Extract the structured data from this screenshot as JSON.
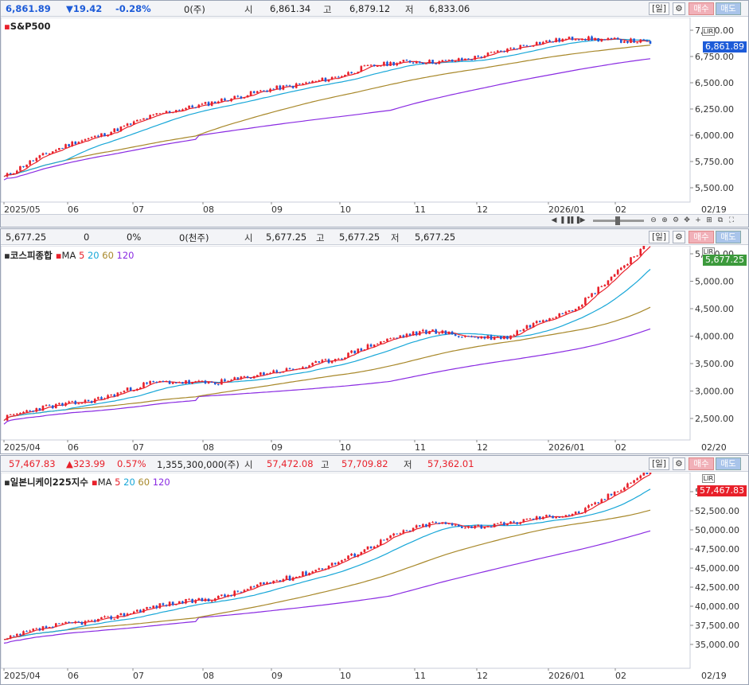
{
  "colors": {
    "up": "#e8202a",
    "down": "#1d5bd8",
    "ma5": "#e8202a",
    "ma20": "#18a7d8",
    "ma60": "#a8882a",
    "ma120": "#8a2be2"
  },
  "panels": [
    {
      "price": "6,861.89",
      "change": "▼19.42",
      "change_pct": "-0.28%",
      "volume": "0(주)",
      "open_label": "시",
      "open": "6,861.34",
      "high_label": "고",
      "high": "6,879.12",
      "low_label": "저",
      "low": "6,833.06",
      "period": "[일]",
      "buy": "매수",
      "sell": "매도",
      "title": "S&P500",
      "ma_label": "",
      "ma_values": [],
      "current_tag": "6,861.89",
      "lir": "LIR",
      "y_ticks": [
        "7,000.00",
        "6,750.00",
        "6,500.00",
        "6,250.00",
        "6,000.00",
        "5,750.00",
        "5,500.00"
      ],
      "x_ticks": [
        "2025/05",
        "06",
        "07",
        "08",
        "09",
        "10",
        "11",
        "12",
        "2026/01",
        "02"
      ],
      "end_date": "02/19",
      "tag_color": "down"
    },
    {
      "price": "5,677.25",
      "change": "0",
      "change_pct": "0%",
      "volume": "0(천주)",
      "open_label": "시",
      "open": "5,677.25",
      "high_label": "고",
      "high": "5,677.25",
      "low_label": "저",
      "low": "5,677.25",
      "period": "[일]",
      "buy": "매수",
      "sell": "매도",
      "title": "코스피종합",
      "ma_label": "MA",
      "ma_values": [
        "5",
        "20",
        "60",
        "120"
      ],
      "current_tag": "5,677.25",
      "lir": "LIR",
      "y_ticks": [
        "5,500.00",
        "5,000.00",
        "4,500.00",
        "4,000.00",
        "3,500.00",
        "3,000.00",
        "2,500.00"
      ],
      "x_ticks": [
        "2025/04",
        "06",
        "07",
        "08",
        "09",
        "10",
        "11",
        "12",
        "2026/01",
        "02"
      ],
      "end_date": "02/20",
      "tag_color": "flat"
    },
    {
      "price": "57,467.83",
      "change": "▲323.99",
      "change_pct": "0.57%",
      "volume": "1,355,300,000(주)",
      "open_label": "시",
      "open": "57,472.08",
      "high_label": "고",
      "high": "57,709.82",
      "low_label": "저",
      "low": "57,362.01",
      "period": "[일]",
      "buy": "매수",
      "sell": "매도",
      "title": "일본니케이225지수",
      "ma_label": "MA",
      "ma_values": [
        "5",
        "20",
        "60",
        "120"
      ],
      "current_tag": "57,467.83",
      "lir": "LIR",
      "y_ticks": [
        "55,000.00",
        "52,500.00",
        "50,000.00",
        "47,500.00",
        "45,000.00",
        "42,500.00",
        "40,000.00",
        "37,500.00",
        "35,000.00"
      ],
      "x_ticks": [
        "2025/04",
        "06",
        "07",
        "08",
        "09",
        "10",
        "11",
        "12",
        "2026/01",
        "02"
      ],
      "end_date": "02/19",
      "tag_color": "up"
    }
  ],
  "chart_data": [
    {
      "type": "line",
      "name": "S&P500",
      "x": [
        "2025/05",
        "06",
        "07",
        "08",
        "09",
        "10",
        "11",
        "12",
        "2026/01",
        "02"
      ],
      "series": [
        {
          "name": "close",
          "values": [
            5600,
            5950,
            6150,
            6350,
            6450,
            6650,
            6700,
            6800,
            6950,
            6862
          ]
        }
      ],
      "ylim": [
        5450,
        7050
      ]
    },
    {
      "type": "line",
      "name": "코스피종합",
      "x": [
        "2025/04",
        "06",
        "07",
        "08",
        "09",
        "10",
        "11",
        "12",
        "2026/01",
        "02"
      ],
      "series": [
        {
          "name": "close",
          "values": [
            2500,
            2800,
            3100,
            3200,
            3350,
            3800,
            4100,
            3950,
            4600,
            5677
          ]
        }
      ],
      "ylim": [
        2450,
        5800
      ]
    },
    {
      "type": "line",
      "name": "일본니케이225지수",
      "x": [
        "2025/04",
        "06",
        "07",
        "08",
        "09",
        "10",
        "11",
        "12",
        "2026/01",
        "02"
      ],
      "series": [
        {
          "name": "close",
          "values": [
            35500,
            38000,
            39500,
            41500,
            43500,
            47500,
            51000,
            50500,
            52500,
            57468
          ]
        }
      ],
      "ylim": [
        34500,
        58000
      ]
    }
  ]
}
